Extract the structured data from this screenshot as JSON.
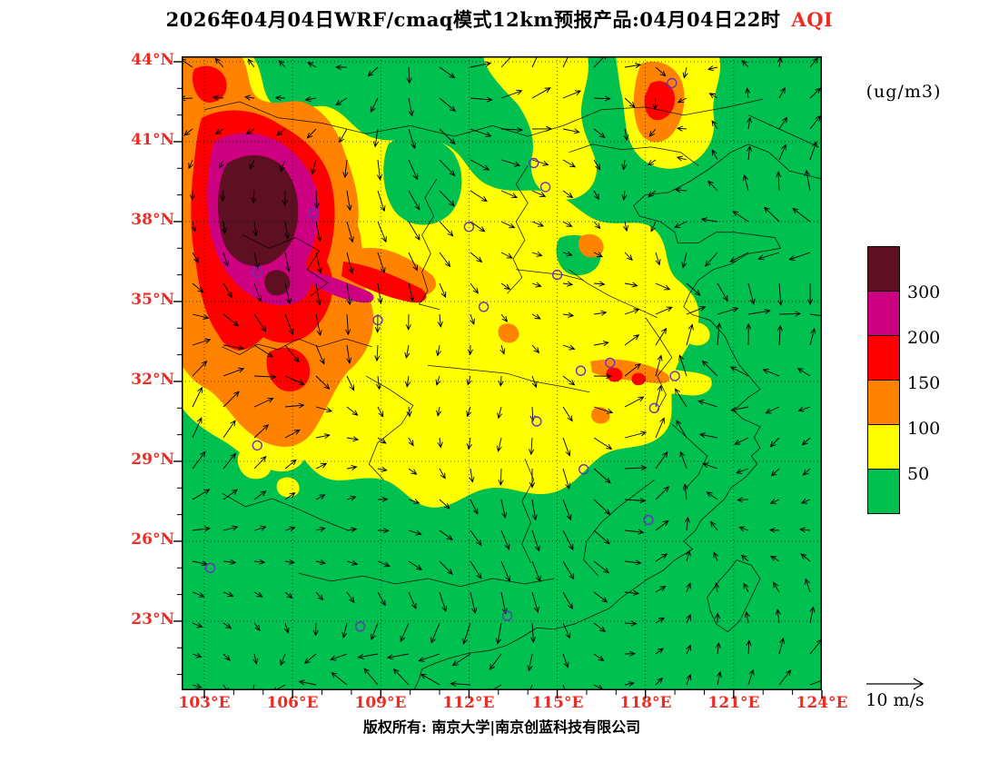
{
  "title": {
    "main": "2026年04月04日WRF/cmaq模式12km预报产品:04月04日22时",
    "species": "AQI"
  },
  "colors": {
    "axis_label_red": "#EE2C24",
    "plot_border": "#000000"
  },
  "axes": {
    "lat_ticks": [
      "44°N",
      "41°N",
      "38°N",
      "35°N",
      "32°N",
      "29°N",
      "26°N",
      "23°N"
    ],
    "lon_ticks": [
      "103°E",
      "106°E",
      "109°E",
      "112°E",
      "115°E",
      "118°E",
      "121°E",
      "124°E"
    ]
  },
  "colorbar": {
    "unit": "(ug/m3)",
    "labels": [
      "300",
      "200",
      "150",
      "100",
      "50"
    ]
  },
  "wind_ref": {
    "label": "10 m/s"
  },
  "footer": {
    "copyright": "版权所有: 南京大学|南京创蓝科技有限公司"
  },
  "chart_data": {
    "type": "heatmap",
    "subtype": "filled-contour-map-with-wind-vectors",
    "title": "2026年04月04日WRF/cmaq模式12km预报产品:04月04日22时 AQI",
    "variable": "AQI",
    "unit": "ug/m3",
    "lon_range": [
      103,
      124
    ],
    "lat_range": [
      23,
      44
    ],
    "lon_ticks_deg": [
      103,
      106,
      109,
      112,
      115,
      118,
      121,
      124
    ],
    "lat_ticks_deg": [
      44,
      41,
      38,
      35,
      32,
      29,
      26,
      23
    ],
    "levels": [
      50,
      100,
      150,
      200,
      300
    ],
    "palette": {
      "green": "#00C050",
      "yellow": "#FFFF00",
      "orange": "#FF8300",
      "red": "#FF0000",
      "magenta": "#CC0080",
      "maroon": "#5E1022"
    },
    "legend_order_top_to_bottom": [
      "maroon",
      "magenta",
      "red",
      "orange",
      "yellow",
      "green"
    ],
    "station_marker_color": "#6633BB",
    "wind": {
      "style": "arrows",
      "reference_label": "10 m/s"
    },
    "high_aqi_regions": [
      {
        "area": "Northwest (Gansu/Ningxia/Shaanxi) core",
        "lon": 105.0,
        "lat": 37.5,
        "level": ">300"
      },
      {
        "area": "Ring around NW core",
        "lon": 106.5,
        "lat": 36.5,
        "level": "150-300"
      },
      {
        "area": "Top-centre band reaching north edge",
        "lon": 114.0,
        "lat": 42.5,
        "level": "50-100"
      },
      {
        "area": "North-east band near top edge",
        "lon": 118.5,
        "lat": 43.0,
        "level": "100-200"
      },
      {
        "area": "Central China plain",
        "lon": 113.0,
        "lat": 33.5,
        "level": "50-100"
      },
      {
        "area": "Anhui-Jiangsu corridor",
        "lon": 117.5,
        "lat": 32.2,
        "level": "100-150"
      },
      {
        "area": "Scattered patches near 29N",
        "lon": 113.0,
        "lat": 29.3,
        "level": "50-100"
      }
    ],
    "stations": [
      [
        106.7,
        38.3
      ],
      [
        104.8,
        36.1
      ],
      [
        112.0,
        37.8
      ],
      [
        114.2,
        40.2
      ],
      [
        118.9,
        43.2
      ],
      [
        114.6,
        39.3
      ],
      [
        112.5,
        34.8
      ],
      [
        115.0,
        36.0
      ],
      [
        108.9,
        34.3
      ],
      [
        115.8,
        32.4
      ],
      [
        116.8,
        32.7
      ],
      [
        119.0,
        32.2
      ],
      [
        118.3,
        31.0
      ],
      [
        114.3,
        30.5
      ],
      [
        104.8,
        29.6
      ],
      [
        115.9,
        28.7
      ],
      [
        118.1,
        26.8
      ],
      [
        103.2,
        25.0
      ],
      [
        108.3,
        22.8
      ],
      [
        113.3,
        23.2
      ]
    ]
  }
}
